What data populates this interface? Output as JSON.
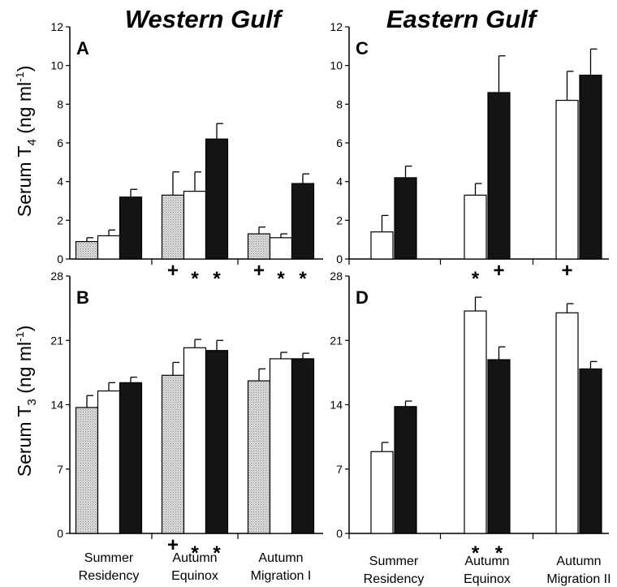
{
  "column_titles": [
    "Western Gulf",
    "Eastern Gulf"
  ],
  "y_labels": {
    "t4": {
      "prefix": "Serum T",
      "sub": "4",
      "mid": " (ng ml",
      "sup": "-1",
      "suffix": ")"
    },
    "t3": {
      "prefix": "Serum T",
      "sub": "3",
      "mid": " (ng ml",
      "sup": "-1",
      "suffix": ")"
    }
  },
  "categories": {
    "western": [
      [
        "Summer",
        "Residency"
      ],
      [
        "Autumn",
        "Equinox"
      ],
      [
        "Autumn",
        "Migration I"
      ]
    ],
    "eastern": [
      [
        "Summer",
        "Residency"
      ],
      [
        "Autumn",
        "Equinox"
      ],
      [
        "Autumn",
        "Migration II"
      ]
    ]
  },
  "colors": {
    "stippled": "#d6d6d6",
    "open": "#ffffff",
    "filled": "#141414",
    "axis": "#000000"
  },
  "chart_data": [
    {
      "panel": "A",
      "type": "bar",
      "column": "western",
      "row": "t4",
      "ylim": [
        0,
        12
      ],
      "yticks": [
        0,
        2,
        4,
        6,
        8,
        10,
        12
      ],
      "series_styles": [
        "stippled",
        "open",
        "filled"
      ],
      "groups": [
        {
          "values": [
            0.9,
            1.2,
            3.2
          ],
          "errors": [
            0.2,
            0.3,
            0.4
          ],
          "marks": [
            "",
            "",
            ""
          ]
        },
        {
          "values": [
            3.3,
            3.5,
            6.2
          ],
          "errors": [
            1.2,
            1.0,
            0.8
          ],
          "marks": [
            "+",
            "*",
            "*"
          ]
        },
        {
          "values": [
            1.3,
            1.1,
            3.9
          ],
          "errors": [
            0.35,
            0.2,
            0.5
          ],
          "marks": [
            "+",
            "*",
            "*"
          ]
        }
      ]
    },
    {
      "panel": "B",
      "type": "bar",
      "column": "western",
      "row": "t3",
      "ylim": [
        0,
        28
      ],
      "yticks": [
        0,
        7,
        14,
        21,
        28
      ],
      "series_styles": [
        "stippled",
        "open",
        "filled"
      ],
      "groups": [
        {
          "values": [
            13.7,
            15.5,
            16.4
          ],
          "errors": [
            1.3,
            0.9,
            0.6
          ],
          "marks": [
            "",
            "",
            ""
          ]
        },
        {
          "values": [
            17.2,
            20.2,
            19.9
          ],
          "errors": [
            1.4,
            0.9,
            1.1
          ],
          "marks": [
            "+",
            "*",
            "*"
          ]
        },
        {
          "values": [
            16.6,
            19.0,
            19.0
          ],
          "errors": [
            1.3,
            0.7,
            0.6
          ],
          "marks": [
            "",
            "",
            ""
          ]
        }
      ]
    },
    {
      "panel": "C",
      "type": "bar",
      "column": "eastern",
      "row": "t4",
      "ylim": [
        0,
        12
      ],
      "yticks": [
        0,
        2,
        4,
        6,
        8,
        10,
        12
      ],
      "series_styles": [
        "open",
        "filled"
      ],
      "groups": [
        {
          "values": [
            1.4,
            4.2
          ],
          "errors": [
            0.85,
            0.6
          ],
          "marks": [
            "",
            ""
          ]
        },
        {
          "values": [
            3.3,
            8.6
          ],
          "errors": [
            0.6,
            1.9
          ],
          "marks": [
            "*",
            "+"
          ]
        },
        {
          "values": [
            8.2,
            9.5
          ],
          "errors": [
            1.5,
            1.35
          ],
          "marks": [
            "+",
            ""
          ]
        }
      ]
    },
    {
      "panel": "D",
      "type": "bar",
      "column": "eastern",
      "row": "t3",
      "ylim": [
        0,
        28
      ],
      "yticks": [
        0,
        7,
        14,
        21,
        28
      ],
      "series_styles": [
        "open",
        "filled"
      ],
      "groups": [
        {
          "values": [
            8.9,
            13.8
          ],
          "errors": [
            1.0,
            0.6
          ],
          "marks": [
            "",
            ""
          ]
        },
        {
          "values": [
            24.2,
            18.9
          ],
          "errors": [
            1.5,
            1.4
          ],
          "marks": [
            "*",
            "*"
          ]
        },
        {
          "values": [
            24.0,
            17.9
          ],
          "errors": [
            1.0,
            0.8
          ],
          "marks": [
            "",
            ""
          ]
        }
      ]
    }
  ]
}
